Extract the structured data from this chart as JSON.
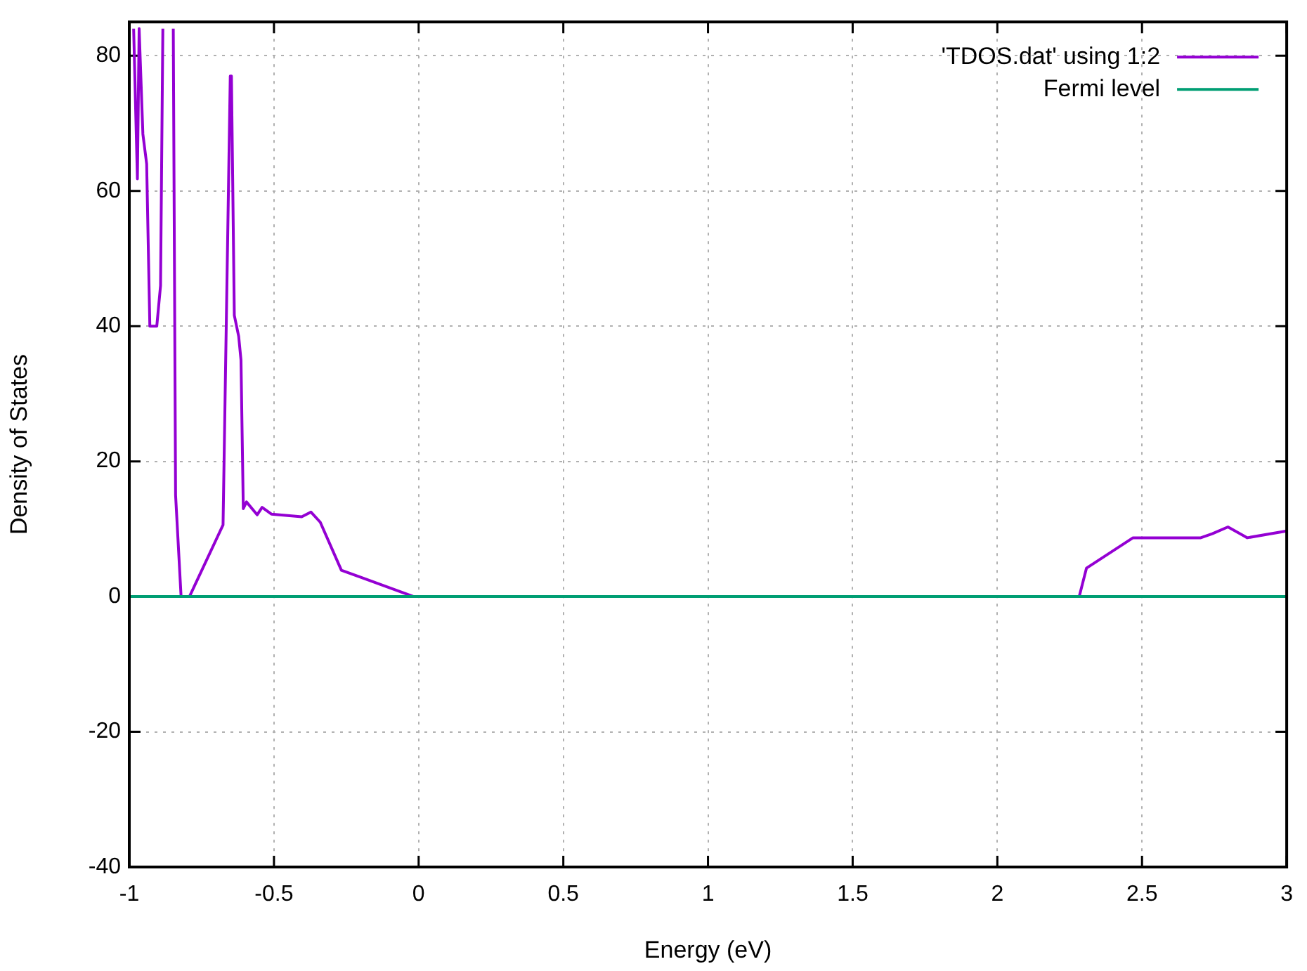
{
  "chart_data": {
    "type": "line",
    "xlabel": "Energy (eV)",
    "ylabel": "Density of States",
    "xlim": [
      -1,
      3
    ],
    "xticks": [
      -1,
      -0.5,
      0,
      0.5,
      1,
      1.5,
      2,
      2.5,
      3
    ],
    "ylim": [
      -40,
      85
    ],
    "yticks": [
      -40,
      -20,
      0,
      20,
      40,
      60,
      80
    ],
    "grid": true,
    "legend": "top right",
    "marker": "none",
    "line_style": "solid",
    "series": [
      {
        "name": "'TDOS.dat' using 1:2",
        "color": "#9400d3",
        "x": [
          -0.985,
          -0.972,
          -0.966,
          -0.953,
          -0.94,
          -0.929,
          -0.905,
          -0.892,
          -0.884,
          -0.866,
          -0.848,
          -0.84,
          -0.821,
          -0.792,
          -0.676,
          -0.651,
          -0.647,
          -0.637,
          -0.622,
          -0.614,
          -0.606,
          -0.595,
          -0.558,
          -0.541,
          -0.509,
          -0.404,
          -0.372,
          -0.34,
          -0.267,
          -0.017,
          2.283,
          2.308,
          2.469,
          2.703,
          2.743,
          2.797,
          2.864,
          3
        ],
        "values": [
          84,
          61.8,
          84,
          68.4,
          64,
          40,
          40,
          46,
          84,
          null,
          84,
          15,
          0,
          0,
          10.6,
          77,
          77,
          41.6,
          38.5,
          35,
          13,
          14,
          12.1,
          13.2,
          12.2,
          11.8,
          12.5,
          11,
          3.9,
          0,
          0,
          4.2,
          8.7,
          8.7,
          9.3,
          10.3,
          8.7,
          9.7
        ]
      },
      {
        "name": "Fermi level",
        "color": "#009e73",
        "x": [
          -1,
          3
        ],
        "values": [
          0,
          0
        ]
      }
    ]
  }
}
